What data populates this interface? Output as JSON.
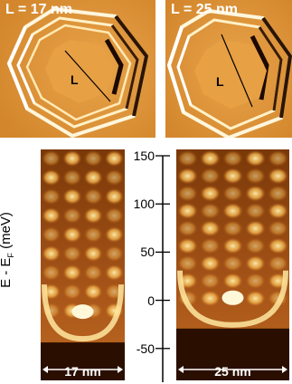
{
  "panels": {
    "topo_left": {
      "label": "L = 17 nm",
      "marker": "L"
    },
    "topo_right": {
      "label": "L = 25 nm",
      "marker": "L"
    },
    "map_left": {
      "width_label": "17 nm"
    },
    "map_right": {
      "width_label": "25 nm"
    }
  },
  "axis": {
    "ylabel_main": "E - E",
    "ylabel_sub": "F",
    "ylabel_unit": " (meV)",
    "ticks": [
      "150",
      "100",
      "50",
      "0",
      "-50"
    ],
    "tick_values": [
      150,
      100,
      50,
      0,
      -50
    ],
    "range": [
      -85,
      150
    ]
  },
  "colors": {
    "topo_bg": "#e39a3a",
    "map_dark": "#2a0e00",
    "map_mid": "#b8601c",
    "map_bright": "#fff0b0"
  }
}
